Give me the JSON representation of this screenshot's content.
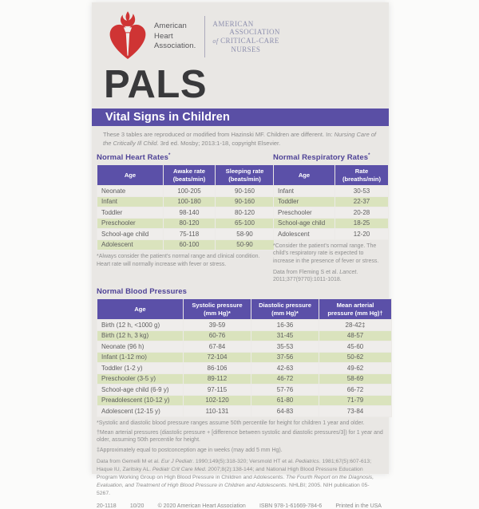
{
  "colors": {
    "accent_purple": "#5a4fa5",
    "table_header_purple": "#5b50a8",
    "row_green": "#dae3bd",
    "row_white": "#efedeb",
    "card_background": "#e9e7e4",
    "heart_red": "#cf3434",
    "aacn_purple": "#8e90ae",
    "section_title_purple": "#4e4296"
  },
  "header": {
    "aha_name": "American\nHeart\nAssociation.",
    "aacn": {
      "l1": "AMERICAN",
      "l2": "ASSOCIATION",
      "l3_of": "of",
      "l3": "CRITICAL-CARE",
      "l4": "NURSES"
    },
    "course": "PALS",
    "banner": "Vital Signs in Children"
  },
  "intro_segments": [
    {
      "t": "These 3 tables are reproduced or modified from Hazinski MF. Children are different. In: "
    },
    {
      "t": "Nursing Care of the Critically Ill Child",
      "i": true
    },
    {
      "t": ". 3rd ed. Mosby; 2013:1-18, copyright Elsevier."
    }
  ],
  "tables": {
    "heart": {
      "title": "Normal Heart Rates",
      "title_sup": "*",
      "headers": [
        "Age",
        "Awake rate\n(beats/min)",
        "Sleeping rate\n(beats/min)"
      ],
      "rows": [
        [
          "Neonate",
          "100-205",
          "90-160"
        ],
        [
          "Infant",
          "100-180",
          "90-160"
        ],
        [
          "Toddler",
          "98-140",
          "80-120"
        ],
        [
          "Preschooler",
          "80-120",
          "65-100"
        ],
        [
          "School-age child",
          "75-118",
          "58-90"
        ],
        [
          "Adolescent",
          "60-100",
          "50-90"
        ]
      ],
      "footnote": "*Always consider the patient's normal range and clinical condition. Heart rate will normally increase with fever or stress."
    },
    "resp": {
      "title": "Normal Respiratory Rates",
      "title_sup": "*",
      "headers": [
        "Age",
        "Rate\n(breaths/min)"
      ],
      "rows": [
        [
          "Infant",
          "30-53"
        ],
        [
          "Toddler",
          "22-37"
        ],
        [
          "Preschooler",
          "20-28"
        ],
        [
          "School-age child",
          "18-25"
        ],
        [
          "Adolescent",
          "12-20"
        ]
      ],
      "footnote": "*Consider the patient's normal range. The child's respiratory rate is expected to increase in the presence of fever or stress.",
      "source_segments": [
        {
          "t": "Data from Fleming S et al. "
        },
        {
          "t": "Lancet",
          "i": true
        },
        {
          "t": ". 2011;377(9770):1011-1018."
        }
      ]
    },
    "bp": {
      "title": "Normal Blood Pressures",
      "headers": [
        "Age",
        "Systolic pressure\n(mm Hg)*",
        "Diastolic pressure\n(mm Hg)*",
        "Mean arterial\npressure (mm Hg)†"
      ],
      "rows": [
        [
          "Birth (12 h, <1000 g)",
          "39-59",
          "16-36",
          "28-42‡"
        ],
        [
          "Birth (12 h, 3 kg)",
          "60-76",
          "31-45",
          "48-57"
        ],
        [
          "Neonate (96 h)",
          "67-84",
          "35-53",
          "45-60"
        ],
        [
          "Infant (1-12 mo)",
          "72-104",
          "37-56",
          "50-62"
        ],
        [
          "Toddler (1-2 y)",
          "86-106",
          "42-63",
          "49-62"
        ],
        [
          "Preschooler (3-5 y)",
          "89-112",
          "46-72",
          "58-69"
        ],
        [
          "School-age child (6-9 y)",
          "97-115",
          "57-76",
          "66-72"
        ],
        [
          "Preadolescent (10-12 y)",
          "102-120",
          "61-80",
          "71-79"
        ],
        [
          "Adolescent (12-15 y)",
          "110-131",
          "64-83",
          "73-84"
        ]
      ],
      "footnotes": [
        "*Systolic and diastolic blood pressure ranges assume 50th percentile for height for children 1 year and older.",
        "†Mean arterial pressures (diastolic pressure + [difference between systolic and diastolic pressures/3]) for 1 year and older, assuming 50th percentile for height.",
        "‡Approximately equal to postconception age in weeks (may add 5 mm Hg)."
      ],
      "references_segments": [
        {
          "t": "Data from Gemelli M et al. "
        },
        {
          "t": "Eur J Pediatr",
          "i": true
        },
        {
          "t": ". 1990;149(5):318-320; Versmold HT et al. "
        },
        {
          "t": "Pediatrics",
          "i": true
        },
        {
          "t": ". 1981;67(5):607-613; Haque IU, Zaritsky AL. "
        },
        {
          "t": "Pediatr Crit Care Med",
          "i": true
        },
        {
          "t": ". 2007;8(2):138-144; and National High Blood Pressure Education Program Working Group on High Blood Pressure in Children and Adolescents. "
        },
        {
          "t": "The Fourth Report on the Diagnosis, Evaluation, and Treatment of High Blood Pressure in Children and Adolescents",
          "i": true
        },
        {
          "t": ". NHLBI; 2005. NIH publication 05-5267."
        }
      ]
    }
  },
  "footer": {
    "items": [
      "20-1118",
      "10/20",
      "© 2020 American Heart Association",
      "ISBN 978-1-61669-784-6",
      "Printed in the USA"
    ]
  }
}
